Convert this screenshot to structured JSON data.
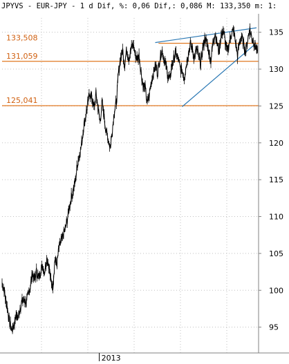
{
  "header": {
    "text": "JPYVS - EUR-JPY -  1 d Dif, %: 0,06 Dif,: 0,086 M: 133,350 m: 1:"
  },
  "colors": {
    "hline": "#e07820",
    "hline_label": "#d06010",
    "trend": "#2a78b4",
    "price": "#000000",
    "grid": "#bfbfbf",
    "axis": "#808080"
  },
  "chart_data": {
    "type": "line",
    "title": "",
    "xlabel": "",
    "ylabel": "",
    "ylim": [
      91.5,
      137.5
    ],
    "x_range": [
      0,
      100
    ],
    "yticks": [
      95,
      100,
      105,
      110,
      115,
      120,
      125,
      130,
      135
    ],
    "ytick_labels": [
      "95",
      "100",
      "105",
      "110",
      "115",
      "120",
      "125",
      "130",
      "135"
    ],
    "xticks": [
      {
        "x": 37.9,
        "label": "2013"
      }
    ],
    "grid": true,
    "right_axis": true,
    "hlines": [
      {
        "name": "level-133508",
        "label": "133,508",
        "value": 133.508,
        "x_start": 61
      },
      {
        "name": "level-131059",
        "label": "131,059",
        "value": 131.059,
        "x_start": 0
      },
      {
        "name": "level-125041",
        "label": "125,041",
        "value": 125.041,
        "x_start": 0
      }
    ],
    "trendlines": [
      {
        "name": "upper-trendline",
        "x1": 59.7,
        "y1": 133.6,
        "x2": 99.2,
        "y2": 135.6
      },
      {
        "name": "lower-trendline",
        "x1": 70.2,
        "y1": 124.9,
        "x2": 98.7,
        "y2": 133.4
      }
    ],
    "series": [
      {
        "x": [
          0.0,
          0.8,
          1.5,
          2.2,
          3.0,
          3.8,
          4.6,
          5.4,
          6.2,
          7.0,
          7.8,
          8.6,
          9.4,
          10.2,
          11.0,
          11.8,
          12.6,
          13.4,
          14.2,
          15.0,
          15.8,
          16.6,
          17.4,
          18.2,
          19.0,
          19.8,
          20.6,
          21.4,
          22.2,
          23.0,
          23.8,
          24.6,
          25.4,
          26.2,
          27.0,
          27.8,
          28.6,
          29.4,
          30.2,
          31.0,
          31.8,
          32.6,
          33.4,
          34.2,
          35.0,
          35.8,
          36.6,
          37.4,
          38.2,
          39.0,
          39.8,
          40.6,
          41.4,
          42.2,
          43.0,
          43.8,
          44.6,
          45.4,
          46.2,
          47.0,
          47.8,
          48.6,
          49.4,
          50.2,
          51.0,
          51.8,
          52.6,
          53.4,
          54.2,
          55.0,
          55.8,
          56.6,
          57.4,
          58.2,
          59.0,
          59.8,
          60.6,
          61.4,
          62.2,
          63.0,
          63.8,
          64.6,
          65.4,
          66.2,
          67.0,
          67.8,
          68.6,
          69.4,
          70.2,
          71.0,
          71.8,
          72.6,
          73.4,
          74.2,
          75.0,
          75.8,
          76.6,
          77.4,
          78.2,
          79.0,
          79.8,
          80.6,
          81.4,
          82.2,
          83.0,
          83.8,
          84.6,
          85.4,
          86.2,
          87.0,
          87.8,
          88.6,
          89.4,
          90.2,
          91.0,
          91.8,
          92.6,
          93.4,
          94.2,
          95.0,
          95.8,
          96.6,
          97.4,
          98.2,
          99.0,
          99.6
        ],
        "values": [
          101.0,
          100.2,
          98.5,
          97.2,
          95.5,
          94.6,
          95.2,
          96.8,
          96.2,
          97.6,
          98.4,
          98.8,
          98.2,
          99.4,
          100.6,
          102.4,
          101.5,
          102.5,
          101.7,
          102.6,
          103.3,
          102.6,
          104.2,
          103.6,
          101.4,
          100.6,
          104.2,
          103.6,
          105.8,
          106.6,
          107.4,
          108.2,
          109.6,
          111.2,
          112.6,
          113.8,
          114.8,
          117.2,
          118.4,
          119.8,
          122.2,
          123.6,
          125.4,
          126.8,
          126.2,
          124.6,
          126.6,
          124.8,
          122.8,
          125.6,
          123.4,
          121.6,
          120.4,
          119.4,
          121.8,
          124.4,
          125.6,
          129.6,
          131.4,
          132.6,
          130.6,
          132.8,
          131.6,
          132.6,
          133.4,
          132.2,
          131.4,
          131.9,
          129.6,
          127.8,
          127.4,
          125.2,
          126.6,
          128.4,
          129.4,
          130.6,
          129.4,
          131.2,
          132.6,
          131.8,
          130.4,
          129.2,
          128.6,
          130.4,
          131.4,
          132.2,
          131.4,
          130.2,
          129.8,
          128.8,
          130.6,
          132.2,
          133.4,
          132.6,
          131.6,
          132.8,
          131.8,
          130.6,
          132.6,
          134.2,
          133.6,
          132.4,
          131.2,
          133.6,
          134.8,
          133.6,
          132.2,
          134.6,
          135.2,
          133.8,
          132.4,
          133.6,
          134.8,
          135.2,
          133.6,
          131.8,
          133.6,
          134.4,
          133.4,
          132.2,
          134.2,
          135.4,
          134.2,
          133.6,
          133.0,
          132.4
        ]
      }
    ]
  }
}
